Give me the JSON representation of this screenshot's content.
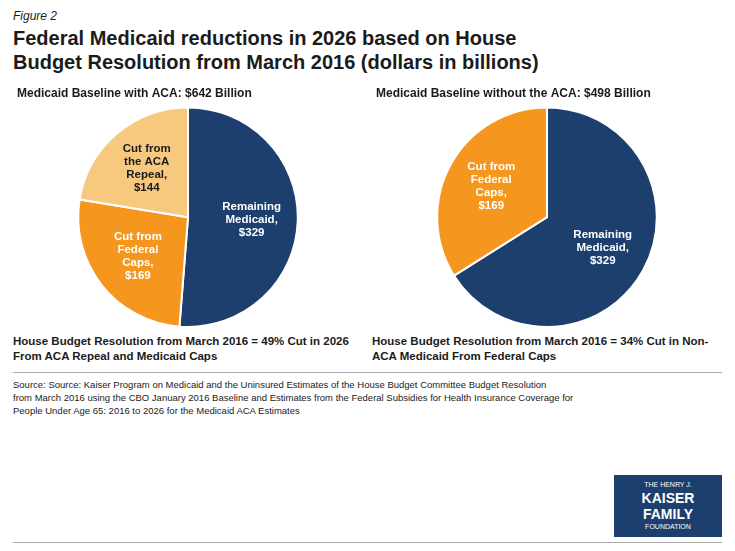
{
  "title": "Federal Medicaid reductions in 2026 based on House\nBudget Resolution from March 2016 (dollars in billions)",
  "annotations": [
    "Figure 2",
    "Source: Source: Kaiser Program on Medicaid and the Uninsured Estimates of the House Budget Committee  Budget Resolution\nfrom March 2016 using the CBO January 2016 Baseline and Estimates from the Federal Subsidies for Health Insurance Coverage for\nPeople Under Age 65: 2016 to 2026 for the Medicaid ACA Estimates",
    "THE HENRY J.",
    "KAISER",
    "FAMILY",
    "FOUNDATION"
  ],
  "chart_data": [
    {
      "type": "pie",
      "title": "Medicaid Baseline with ACA: $642 Billion",
      "values": [
        329,
        169,
        144
      ],
      "value_labels": [
        "Remaining\nMedicaid,\n$329",
        "Cut from\nFederal\nCaps,\n$169",
        "Cut from\nthe ACA\nRepeal,\n$144"
      ],
      "colors": [
        "#1c3f6e",
        "#f5961e",
        "#f7c97e"
      ],
      "data_labels": true,
      "annotations": [
        "House Budget Resolution from March 2016 = 49% Cut in 2026\nFrom ACA Repeal and Medicaid Caps"
      ]
    },
    {
      "type": "pie",
      "title": "Medicaid Baseline without the ACA: $498 Billion",
      "values": [
        329,
        169
      ],
      "value_labels": [
        "Remaining\nMedicaid,\n$329",
        "Cut from\nFederal\nCaps,\n$169"
      ],
      "colors": [
        "#1c3f6e",
        "#f5961e"
      ],
      "data_labels": true,
      "annotations": [
        "House Budget Resolution from March 2016 = 34% Cut in Non-\nACA Medicaid From Federal Caps"
      ]
    }
  ]
}
